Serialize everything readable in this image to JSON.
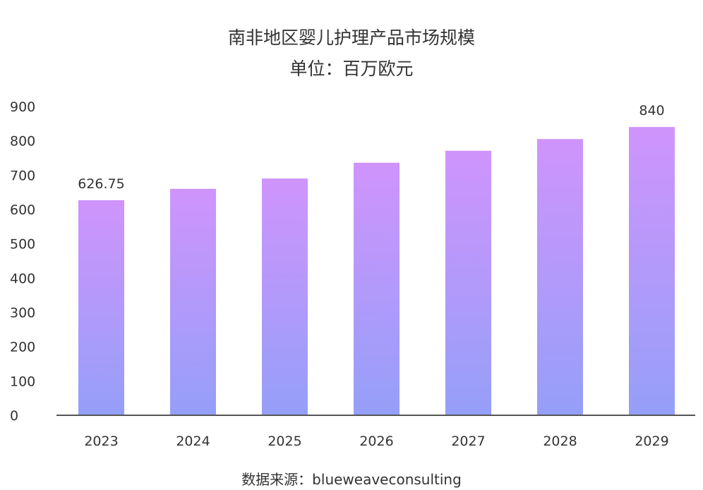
{
  "chart_data": {
    "type": "bar",
    "title": "南非地区婴儿护理产品市场规模",
    "subtitle": "单位：百万欧元",
    "categories": [
      "2023",
      "2024",
      "2025",
      "2026",
      "2027",
      "2028",
      "2029"
    ],
    "values": [
      626.75,
      660,
      690,
      736,
      771,
      805,
      840
    ],
    "data_labels": {
      "2023": "626.75",
      "2029": "840"
    },
    "yticks": [
      "0",
      "100",
      "200",
      "300",
      "400",
      "500",
      "600",
      "700",
      "800",
      "900"
    ],
    "ylim": [
      0,
      900
    ],
    "xlabel": "",
    "ylabel": "",
    "grid": false,
    "colors": {
      "bar_top": "#cf94fc",
      "bar_bottom": "#959ff8",
      "axis": "#555555"
    }
  },
  "source": "数据来源：blueweaveconsulting"
}
